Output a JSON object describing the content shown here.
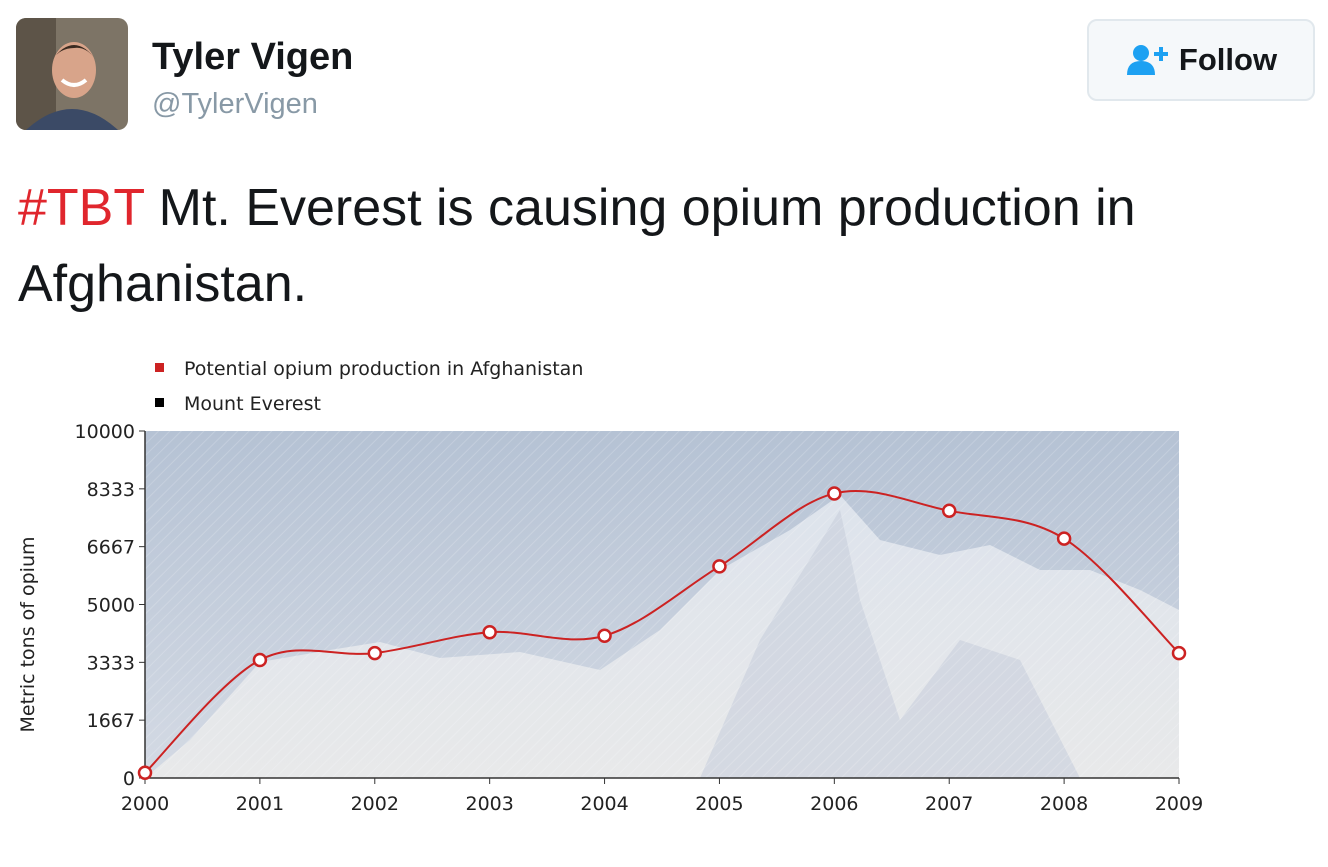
{
  "user": {
    "name": "Tyler Vigen",
    "handle": "@TylerVigen"
  },
  "follow_button": "Follow",
  "tweet": {
    "hashtag": "#TBT",
    "text": "Mt. Everest is causing opium production in Afghanistan."
  },
  "chart_data": {
    "type": "line",
    "y_label": "Metric tons of opium",
    "x": [
      2000,
      2001,
      2002,
      2003,
      2004,
      2005,
      2006,
      2007,
      2008,
      2009
    ],
    "xlim": [
      2000,
      2009
    ],
    "xticks": [
      2000,
      2001,
      2002,
      2003,
      2004,
      2005,
      2006,
      2007,
      2008,
      2009
    ],
    "ylim": [
      0,
      10000
    ],
    "yticks": [
      0,
      1667,
      3333,
      5000,
      6667,
      8333,
      10000
    ],
    "series": [
      {
        "name": "Potential opium production in Afghanistan",
        "color": "#cc2222",
        "values": [
          150,
          3400,
          3600,
          4200,
          4100,
          6100,
          8200,
          7700,
          6900,
          3600
        ]
      },
      {
        "name": "Mount Everest",
        "color": "#000000"
      }
    ]
  }
}
